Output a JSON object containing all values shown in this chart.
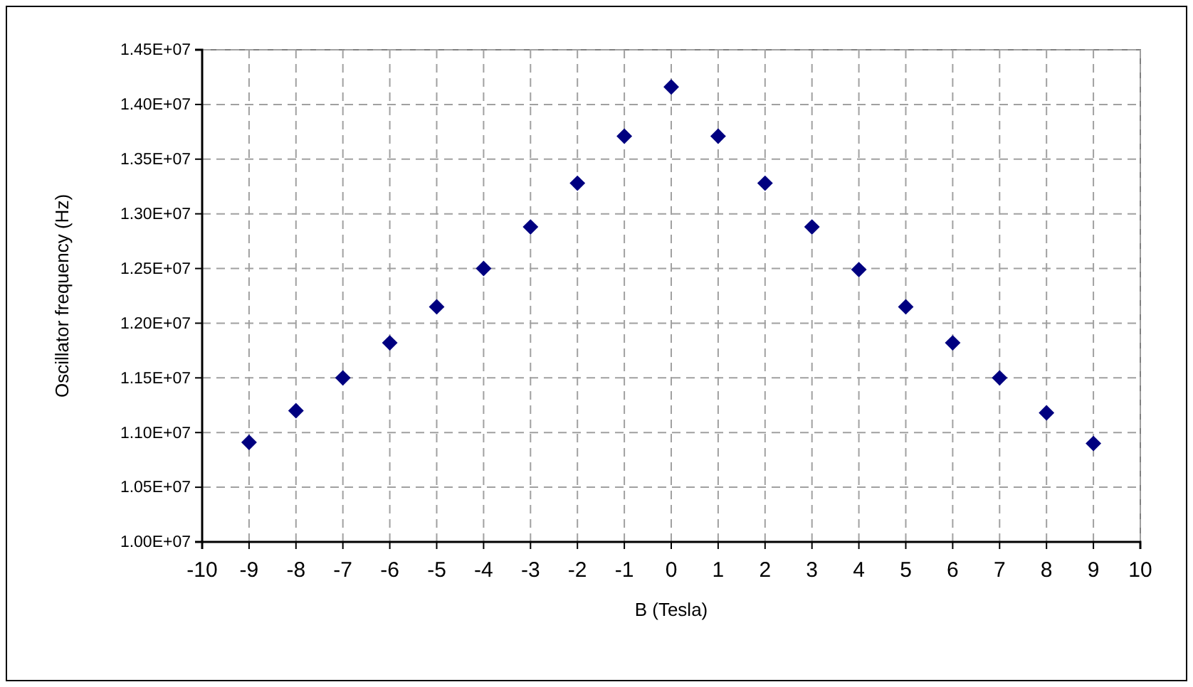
{
  "chart_data": {
    "type": "scatter",
    "xlabel": "B (Tesla)",
    "ylabel": "Oscillator frequency (Hz)",
    "x": [
      -9,
      -8,
      -7,
      -6,
      -5,
      -4,
      -3,
      -2,
      -1,
      0,
      1,
      2,
      3,
      4,
      5,
      6,
      7,
      8,
      9
    ],
    "series": [
      {
        "color": "#000080",
        "values": [
          10910000,
          11200000,
          11500000,
          11820000,
          12150000,
          12500000,
          12880000,
          13280000,
          13710000,
          14160000,
          13710000,
          13280000,
          12880000,
          12490000,
          12150000,
          11820000,
          11500000,
          11180000,
          10900000
        ]
      }
    ],
    "xlim": [
      -10,
      10
    ],
    "xticks": [
      -10,
      -9,
      -8,
      -7,
      -6,
      -5,
      -4,
      -3,
      -2,
      -1,
      0,
      1,
      2,
      3,
      4,
      5,
      6,
      7,
      8,
      9,
      10
    ],
    "ylim": [
      10000000,
      14500000
    ],
    "yticks": [
      {
        "value": 10000000,
        "label": "1.00E+07"
      },
      {
        "value": 10500000,
        "label": "1.05E+07"
      },
      {
        "value": 11000000,
        "label": "1.10E+07"
      },
      {
        "value": 11500000,
        "label": "1.15E+07"
      },
      {
        "value": 12000000,
        "label": "1.20E+07"
      },
      {
        "value": 12500000,
        "label": "1.25E+07"
      },
      {
        "value": 13000000,
        "label": "1.30E+07"
      },
      {
        "value": 13500000,
        "label": "1.35E+07"
      },
      {
        "value": 14000000,
        "label": "1.40E+07"
      },
      {
        "value": 14500000,
        "label": "1.45E+07"
      }
    ],
    "grid": true,
    "marker": "diamond"
  }
}
